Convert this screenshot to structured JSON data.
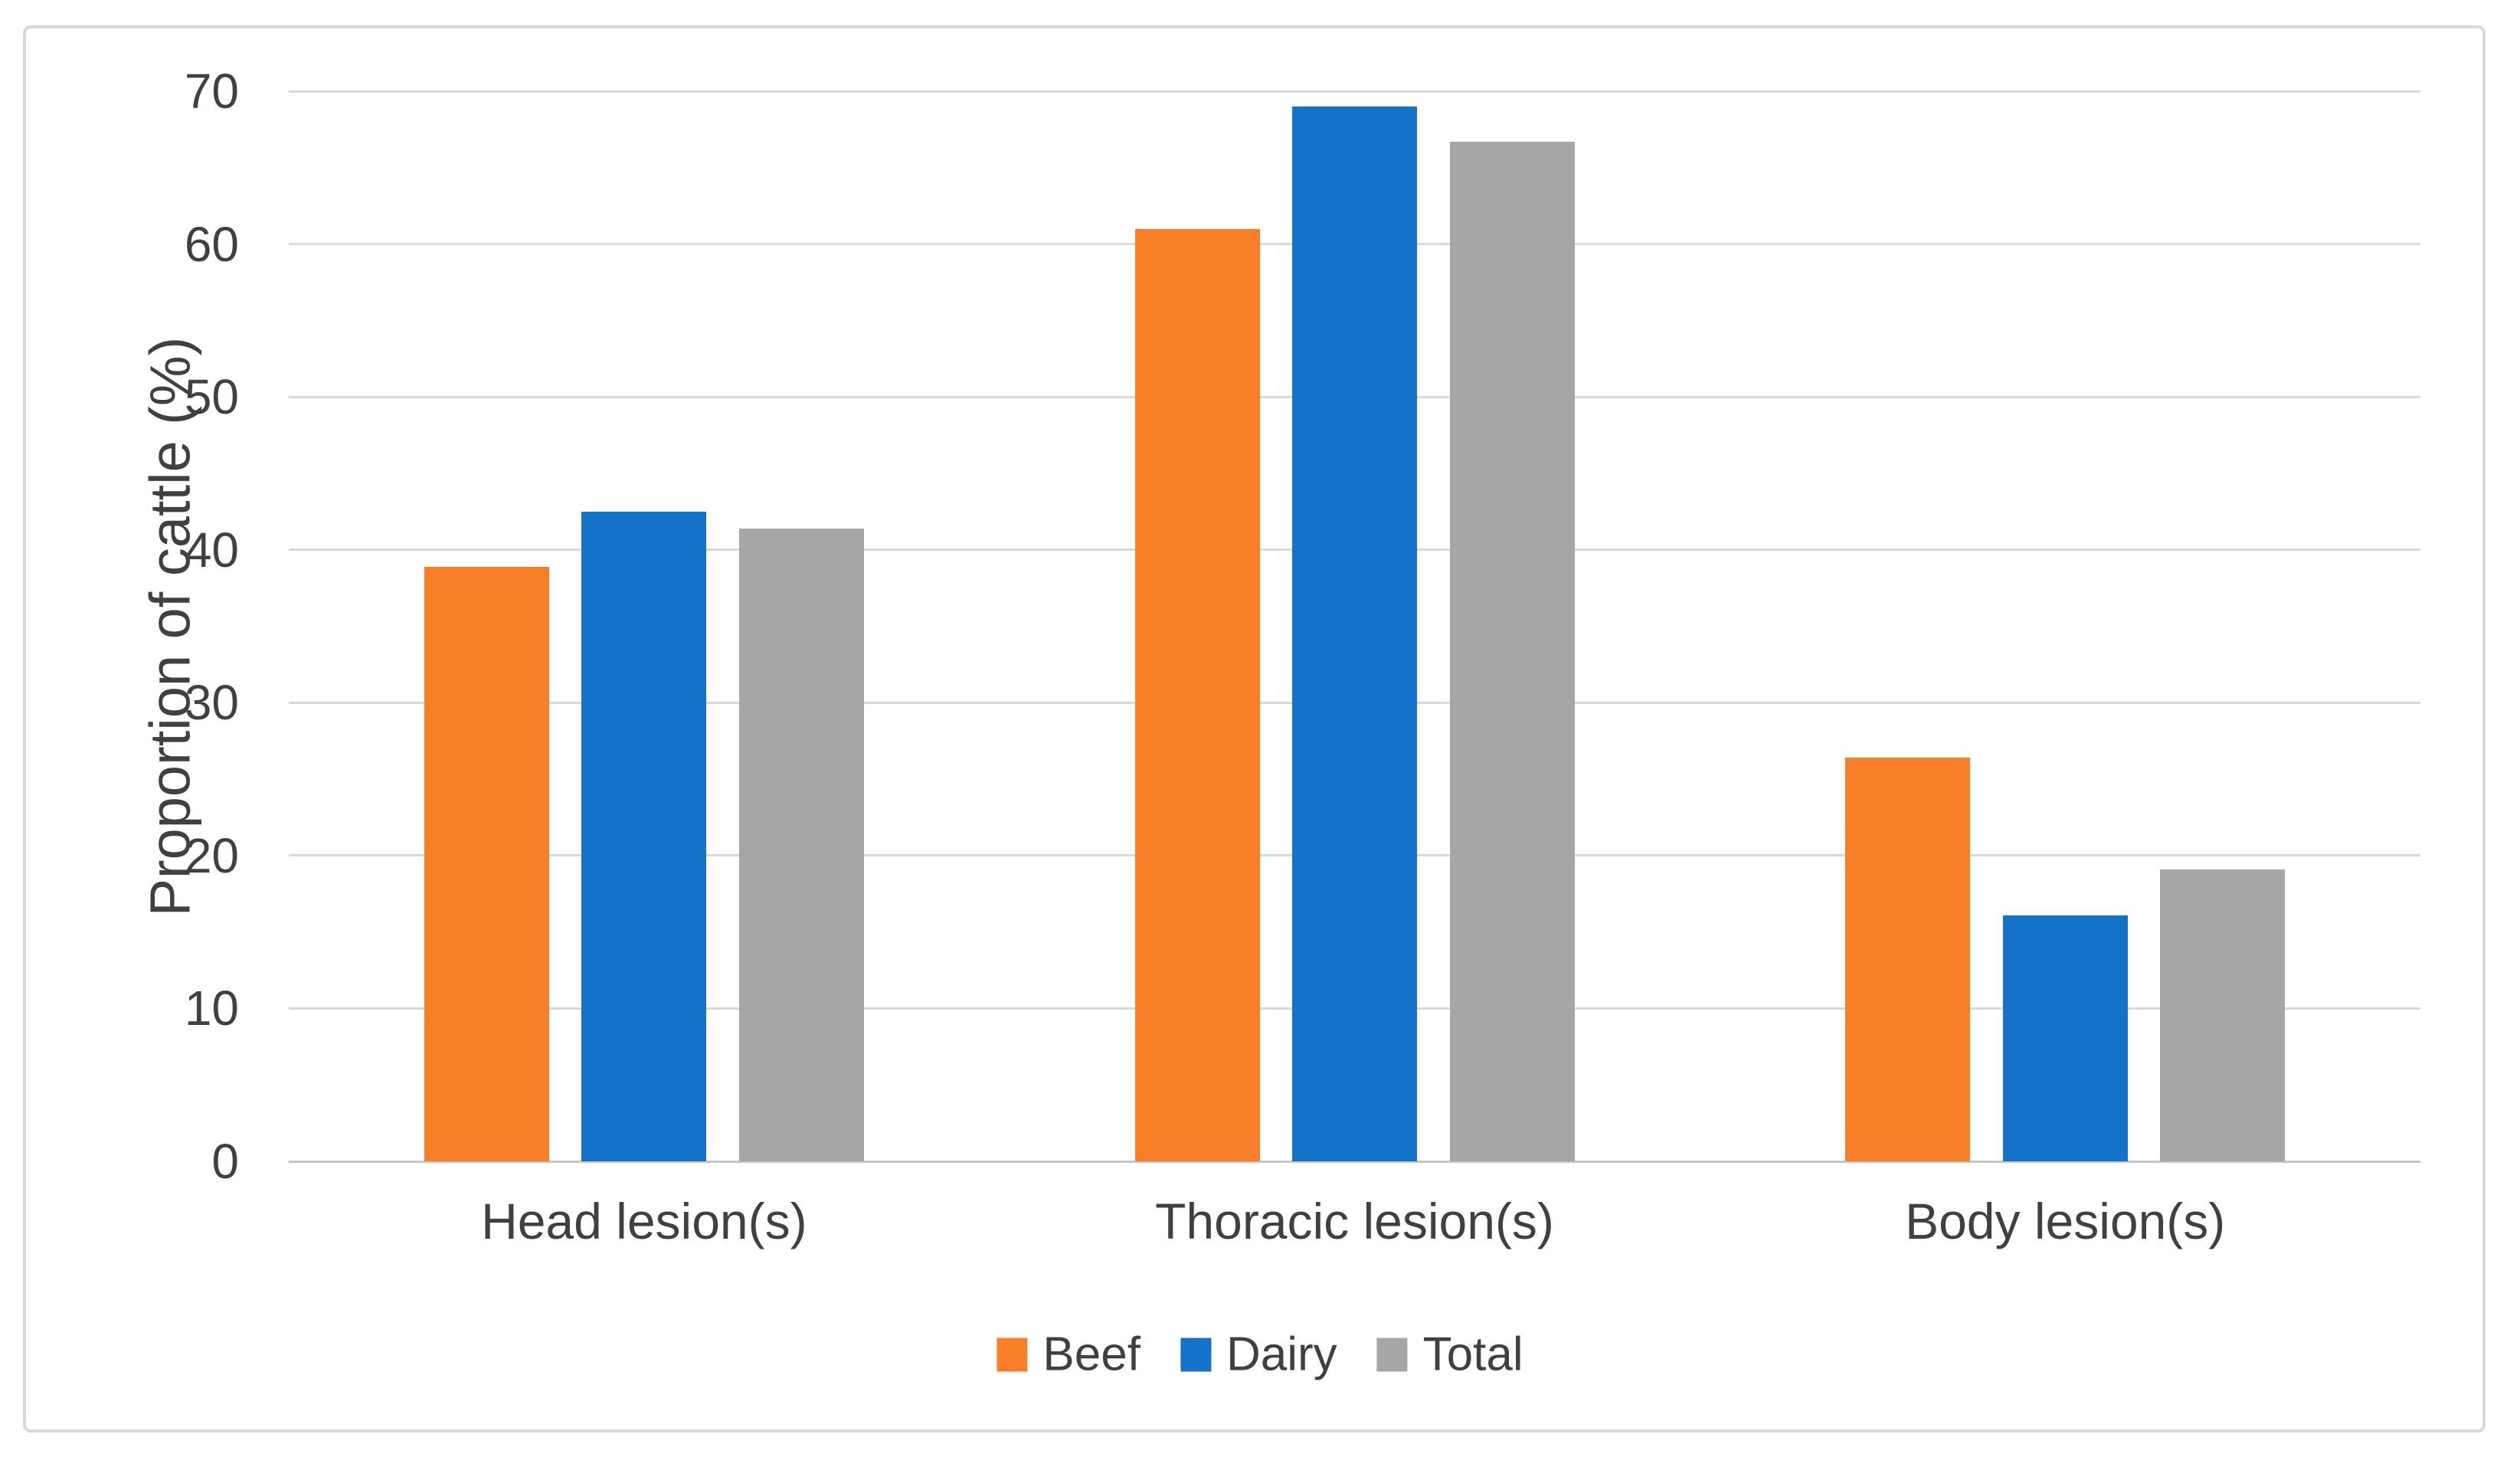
{
  "figure": {
    "background_color": "#FFFFFF",
    "border_color": "#D9D9D9",
    "gridline_color": "#D9D9D9",
    "axis_line_color": "#C6C6C6",
    "text_color": "#404040"
  },
  "chart_data": {
    "type": "bar",
    "title": "",
    "xlabel": "",
    "ylabel": "Proportion of cattle (%)",
    "categories": [
      "Head lesion(s)",
      "Thoracic lesion(s)",
      "Body lesion(s)"
    ],
    "series": [
      {
        "name": "Beef",
        "color": "#F87E27",
        "values": [
          38.9,
          61.0,
          26.4
        ]
      },
      {
        "name": "Dairy",
        "color": "#1473C8",
        "values": [
          42.5,
          69.0,
          16.1
        ]
      },
      {
        "name": "Total",
        "color": "#A6A6A6",
        "values": [
          41.4,
          66.7,
          19.1
        ]
      }
    ],
    "ylim": [
      0,
      70
    ],
    "yticks": [
      0,
      10,
      20,
      30,
      40,
      50,
      60,
      70
    ],
    "ytick_labels": [
      "0",
      "10",
      "20",
      "30",
      "40",
      "50",
      "60",
      "70"
    ],
    "grid": "horizontal",
    "legend_position": "bottom-center"
  }
}
